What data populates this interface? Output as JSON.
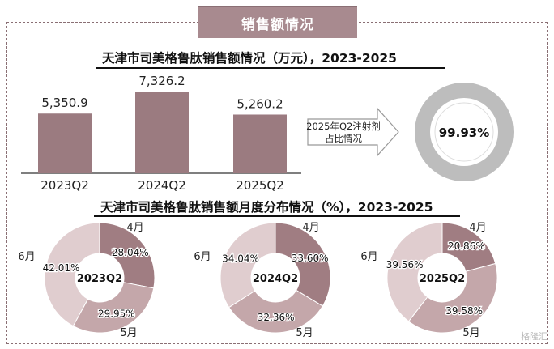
{
  "section_title": "销售额情况",
  "colors": {
    "bar": "#9b7b80",
    "header": "#a88a8f",
    "donut_apr": "#a07d82",
    "donut_may": "#c4a7aa",
    "donut_jun": "#e0cdcf",
    "gauge": "#bdbdbd"
  },
  "chart_data": [
    {
      "type": "bar",
      "title": "天津市司美格鲁肽销售额情况（万元），2023-2025",
      "categories": [
        "2023Q2",
        "2024Q2",
        "2025Q2"
      ],
      "values": [
        5350.9,
        7326.2,
        5260.2
      ],
      "value_labels": [
        "5,350.9",
        "7,326.2",
        "5,260.2"
      ]
    },
    {
      "type": "pie",
      "subtype": "gauge",
      "label": "2025年Q2注射剂占比情况",
      "label_lines": [
        "2025年Q2注射剂",
        "占比情况"
      ],
      "value": 99.93,
      "value_label": "99.93%"
    },
    {
      "type": "pie",
      "subtype": "donut-group",
      "title": "天津市司美格鲁肽销售额月度分布情况（%），2023-2025",
      "months": [
        "4月",
        "5月",
        "6月"
      ],
      "donuts": [
        {
          "center": "2023Q2",
          "values": [
            28.04,
            29.95,
            42.01
          ],
          "labels": [
            "28.04%",
            "29.95%",
            "42.01%"
          ]
        },
        {
          "center": "2024Q2",
          "values": [
            33.6,
            32.36,
            34.04
          ],
          "labels": [
            "33.60%",
            "32.36%",
            "34.04%"
          ]
        },
        {
          "center": "2025Q2",
          "values": [
            20.86,
            39.58,
            39.56
          ],
          "labels": [
            "20.86%",
            "39.58%",
            "39.56%"
          ]
        }
      ]
    }
  ],
  "watermark": "格隆汇"
}
